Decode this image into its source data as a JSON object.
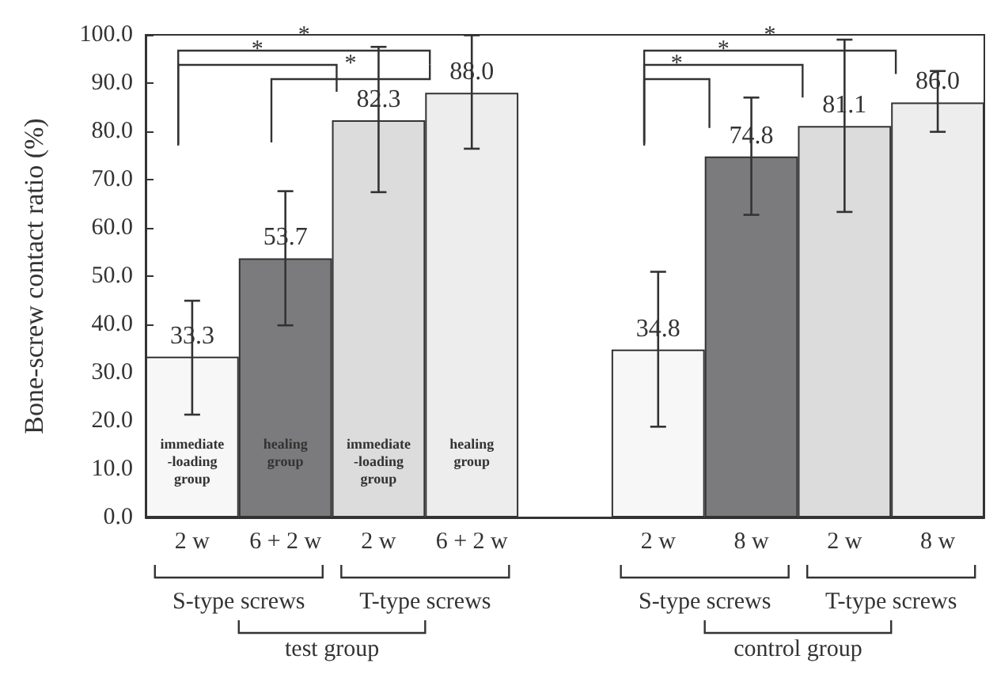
{
  "chart_data": {
    "type": "bar",
    "ylabel": "Bone-screw contact ratio (%)",
    "categories": [
      "2 w",
      "6 + 2 w",
      "2 w",
      "6 + 2 w",
      null,
      "2 w",
      "8 w",
      "2 w",
      "8 w"
    ],
    "values": [
      33.3,
      53.7,
      82.3,
      88.0,
      null,
      34.8,
      74.8,
      81.1,
      86.0
    ],
    "value_labels": [
      "33.3",
      "53.7",
      "82.3",
      "88.0",
      null,
      "34.8",
      "74.8",
      "81.1",
      "86.0"
    ],
    "colors": [
      "#f7f7f7",
      "#7b7b7d",
      "#dcdcdc",
      "#ededed",
      null,
      "#f7f7f7",
      "#7b7b7d",
      "#dcdcdc",
      "#ededed"
    ],
    "errors": [
      [
        21.3,
        44.9
      ],
      [
        39.8,
        67.6
      ],
      [
        67.4,
        97.5
      ],
      [
        76.4,
        99.9
      ],
      null,
      [
        18.8,
        50.9
      ],
      [
        62.7,
        87.0
      ],
      [
        63.3,
        99.0
      ],
      [
        79.9,
        92.5
      ]
    ],
    "ylim": [
      0,
      100
    ],
    "yticks": [
      {
        "value": 0,
        "label": "0.0"
      },
      {
        "value": 10,
        "label": "10.0"
      },
      {
        "value": 20,
        "label": "20.0"
      },
      {
        "value": 30,
        "label": "30.0"
      },
      {
        "value": 40,
        "label": "40.0"
      },
      {
        "value": 50,
        "label": "50.0"
      },
      {
        "value": 60,
        "label": "60.0"
      },
      {
        "value": 70,
        "label": "70.0"
      },
      {
        "value": 80,
        "label": "80.0"
      },
      {
        "value": 90,
        "label": "90.0"
      },
      {
        "value": 100,
        "label": "100.0"
      }
    ],
    "grid": false,
    "annotations": [
      "immediate-loading group",
      "healing group",
      "immediate-loading group",
      "healing group",
      "*",
      "*",
      "*",
      "*",
      "*",
      "*",
      "S-type screws",
      "T-type screws",
      "S-type screws",
      "T-type screws",
      "test group",
      "control group"
    ]
  }
}
